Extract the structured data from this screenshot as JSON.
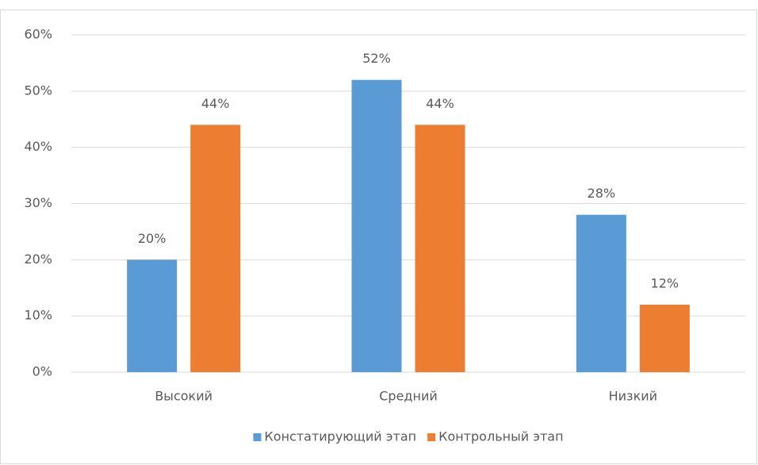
{
  "chart_data": {
    "type": "bar",
    "categories": [
      "Высокий",
      "Средний",
      "Низкий"
    ],
    "series": [
      {
        "name": "Констатирующий этап",
        "color": "#5b9bd5",
        "values": [
          20,
          52,
          28
        ],
        "value_labels": [
          "20%",
          "52%",
          "28%"
        ]
      },
      {
        "name": "Контрольный этап",
        "color": "#ed7d31",
        "values": [
          44,
          44,
          12
        ],
        "value_labels": [
          "44%",
          "44%",
          "12%"
        ]
      }
    ],
    "ylim": [
      0,
      60
    ],
    "yticks": [
      {
        "value": 0,
        "label": "0%"
      },
      {
        "value": 10,
        "label": "10%"
      },
      {
        "value": 20,
        "label": "20%"
      },
      {
        "value": 30,
        "label": "30%"
      },
      {
        "value": 40,
        "label": "40%"
      },
      {
        "value": 50,
        "label": "50%"
      },
      {
        "value": 60,
        "label": "60%"
      }
    ],
    "grid": true,
    "legend": "bottom"
  }
}
